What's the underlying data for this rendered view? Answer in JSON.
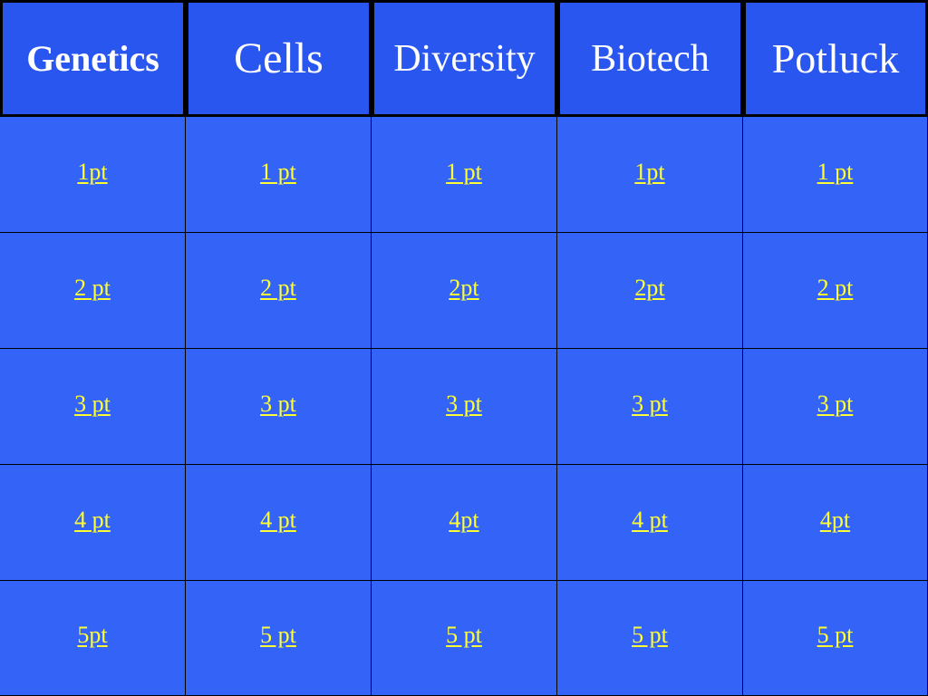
{
  "categories": [
    "Genetics",
    "Cells",
    "Diversity",
    "Biotech",
    "Potluck"
  ],
  "rows": [
    [
      "1pt",
      "1 pt",
      "1 pt",
      "1pt",
      "1 pt"
    ],
    [
      "2 pt",
      "2 pt",
      "2pt",
      "2pt",
      "2 pt"
    ],
    [
      "3 pt",
      "3 pt",
      "3 pt",
      "3 pt",
      "3 pt"
    ],
    [
      "4 pt",
      "4 pt",
      "4pt",
      "4 pt",
      "4pt"
    ],
    [
      "5pt",
      "5 pt",
      "5 pt",
      "5 pt",
      "5 pt"
    ]
  ],
  "colors": {
    "header_bg": "#2a56f0",
    "cell_bg": "#3463f7",
    "link": "#ffff33",
    "header_text": "#ffffff",
    "grid_lines": "#000000"
  }
}
